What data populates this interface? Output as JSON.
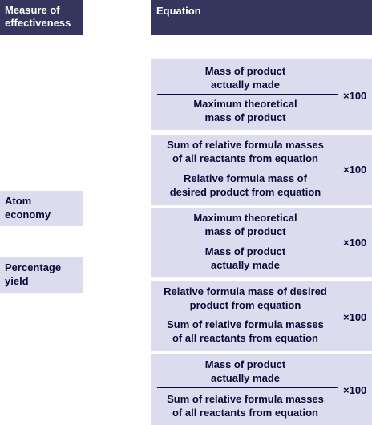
{
  "header": {
    "measure_line1": "Measure of",
    "measure_line2": "effectiveness",
    "equation": "Equation"
  },
  "measures": [
    {
      "line1": "Atom",
      "line2": "economy"
    },
    {
      "line1": "Percentage",
      "line2": "yield"
    }
  ],
  "equations": [
    {
      "numerator": [
        "Mass of product",
        "actually made"
      ],
      "denominator": [
        "Maximum theoretical",
        "mass of product"
      ],
      "multiplier": "×100"
    },
    {
      "numerator": [
        "Sum of relative formula masses",
        "of all reactants from equation"
      ],
      "denominator": [
        "Relative formula mass of",
        "desired product from equation"
      ],
      "multiplier": "×100"
    },
    {
      "numerator": [
        "Maximum theoretical",
        "mass of product"
      ],
      "denominator": [
        "Mass of product",
        "actually made"
      ],
      "multiplier": "×100"
    },
    {
      "numerator": [
        "Relative formula mass of desired",
        "product from equation"
      ],
      "denominator": [
        "Sum of relative formula masses",
        "of all reactants from equation"
      ],
      "multiplier": "×100"
    },
    {
      "numerator": [
        "Mass of product",
        "actually made"
      ],
      "denominator": [
        "Sum of relative formula masses",
        "of all reactants from equation"
      ],
      "multiplier": "×100"
    }
  ],
  "colors": {
    "header_bg": "#35365e",
    "cell_bg": "#dcdcee",
    "text": "#0a0a3a"
  }
}
